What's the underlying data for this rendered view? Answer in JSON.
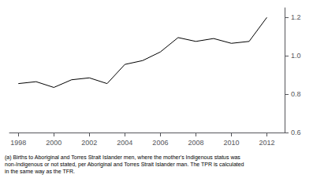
{
  "chart_data": {
    "type": "line",
    "x": [
      1998,
      1999,
      2000,
      2001,
      2002,
      2003,
      2004,
      2005,
      2006,
      2007,
      2008,
      2009,
      2010,
      2011,
      2012
    ],
    "values": [
      0.855,
      0.865,
      0.835,
      0.875,
      0.885,
      0.855,
      0.955,
      0.975,
      1.02,
      1.095,
      1.075,
      1.09,
      1.065,
      1.075,
      1.2
    ],
    "color": "#000000",
    "xlim": [
      1997.5,
      2013.0
    ],
    "ylim": [
      0.6,
      1.25
    ],
    "xticks": [
      1998,
      2000,
      2002,
      2004,
      2006,
      2008,
      2010,
      2012
    ],
    "yticks": [
      0.6,
      0.8,
      {
        "value": 1.0,
        "label": "1.0"
      },
      1.2
    ],
    "grid": false,
    "annotations": [
      "(a) Births to Aboriginal and Torres Strait Islander men, where the mother's Indigenous status was",
      "non-Indigenous or not stated, per Aboriginal and Torres Strait Islander man. The TPR is calculated",
      "in the same way as the TFR."
    ]
  }
}
